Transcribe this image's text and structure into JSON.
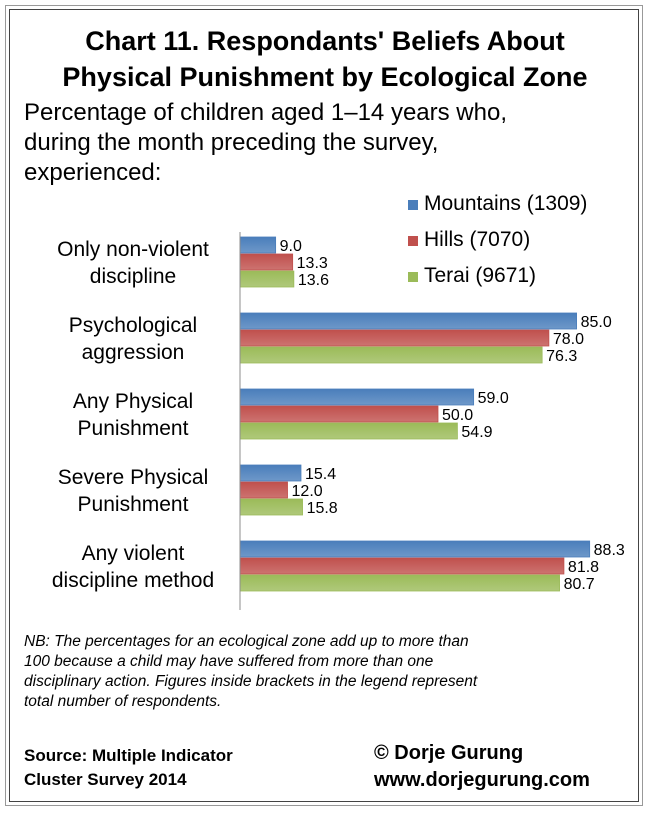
{
  "title_line1": "Chart 11. Respondants' Beliefs About",
  "title_line2": "Physical Punishment by Ecological Zone",
  "subtitle_lines": [
    "Percentage of children aged 1–14 years who,",
    "during the month preceding the survey,",
    "experienced:"
  ],
  "note_lines": [
    "NB: The percentages for an ecological zone add up to more than",
    "100 because a child may have suffered from more than one",
    "disciplinary action. Figures inside brackets in the legend represent",
    "total number of respondents."
  ],
  "source_lines": [
    "Source: Multiple Indicator",
    "Cluster Survey 2014"
  ],
  "credit_lines": [
    "© Dorje Gurung",
    "www.dorjegurung.com"
  ],
  "chart_data": {
    "type": "bar",
    "orientation": "horizontal",
    "categories": [
      [
        "Only non-violent",
        "discipline"
      ],
      [
        "Psychological",
        "aggression"
      ],
      [
        "Any Physical",
        "Punishment"
      ],
      [
        "Severe Physical",
        "Punishment"
      ],
      [
        "Any violent",
        "discipline method"
      ]
    ],
    "series": [
      {
        "name": "Mountains (1309)",
        "color": "#4a7ebb",
        "values": [
          9.0,
          85.0,
          59.0,
          15.4,
          88.3
        ]
      },
      {
        "name": "Hills (7070)",
        "color": "#c0504d",
        "values": [
          13.3,
          78.0,
          50.0,
          12.0,
          81.8
        ]
      },
      {
        "name": "Terai (9671)",
        "color": "#9bbb59",
        "values": [
          13.6,
          76.3,
          54.9,
          15.8,
          80.7
        ]
      }
    ],
    "value_format": "0.0",
    "legend_position": "top-right",
    "xlim": [
      0,
      100
    ],
    "grid": false,
    "value_axis_visible": false
  }
}
